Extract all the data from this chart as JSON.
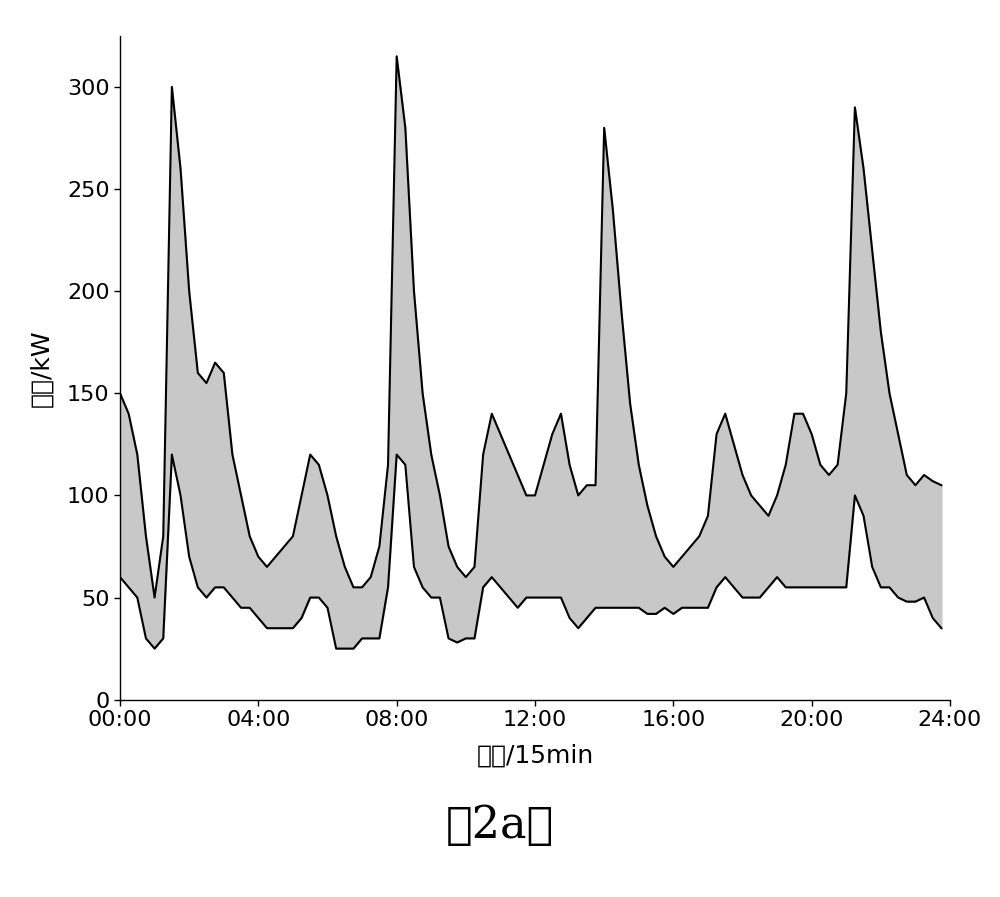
{
  "title": "（2a）",
  "xlabel": "时段/15min",
  "ylabel": "功率/kW",
  "ylim": [
    0,
    325
  ],
  "yticks": [
    0,
    50,
    100,
    150,
    200,
    250,
    300
  ],
  "xtick_labels": [
    "00:00",
    "04:00",
    "08:00",
    "12:00",
    "16:00",
    "20:00",
    "24:00"
  ],
  "xtick_positions": [
    0,
    16,
    32,
    48,
    64,
    80,
    96
  ],
  "fill_color": "#c8c8c8",
  "line_color": "#000000",
  "line_width": 1.5,
  "upper": [
    150,
    140,
    120,
    80,
    50,
    80,
    300,
    260,
    200,
    160,
    155,
    165,
    160,
    120,
    100,
    80,
    70,
    65,
    70,
    75,
    80,
    100,
    120,
    115,
    100,
    80,
    65,
    55,
    55,
    60,
    75,
    115,
    315,
    280,
    200,
    150,
    120,
    100,
    75,
    65,
    60,
    65,
    120,
    140,
    130,
    120,
    110,
    100,
    100,
    115,
    130,
    140,
    115,
    100,
    105,
    105,
    280,
    240,
    190,
    145,
    115,
    95,
    80,
    70,
    65,
    70,
    75,
    80,
    90,
    130,
    140,
    125,
    110,
    100,
    95,
    90,
    100,
    115,
    140,
    140,
    130,
    115,
    110,
    115,
    150,
    290,
    260,
    220,
    180,
    150,
    130,
    110,
    105,
    110,
    107,
    105
  ],
  "lower": [
    60,
    55,
    50,
    30,
    25,
    30,
    120,
    100,
    70,
    55,
    50,
    55,
    55,
    50,
    45,
    45,
    40,
    35,
    35,
    35,
    35,
    40,
    50,
    50,
    45,
    25,
    25,
    25,
    30,
    30,
    30,
    55,
    120,
    115,
    65,
    55,
    50,
    50,
    30,
    28,
    30,
    30,
    55,
    60,
    55,
    50,
    45,
    50,
    50,
    50,
    50,
    50,
    40,
    35,
    40,
    45,
    45,
    45,
    45,
    45,
    45,
    42,
    42,
    45,
    42,
    45,
    45,
    45,
    45,
    55,
    60,
    55,
    50,
    50,
    50,
    55,
    60,
    55,
    55,
    55,
    55,
    55,
    55,
    55,
    55,
    100,
    90,
    65,
    55,
    55,
    50,
    48,
    48,
    50,
    40,
    35
  ]
}
